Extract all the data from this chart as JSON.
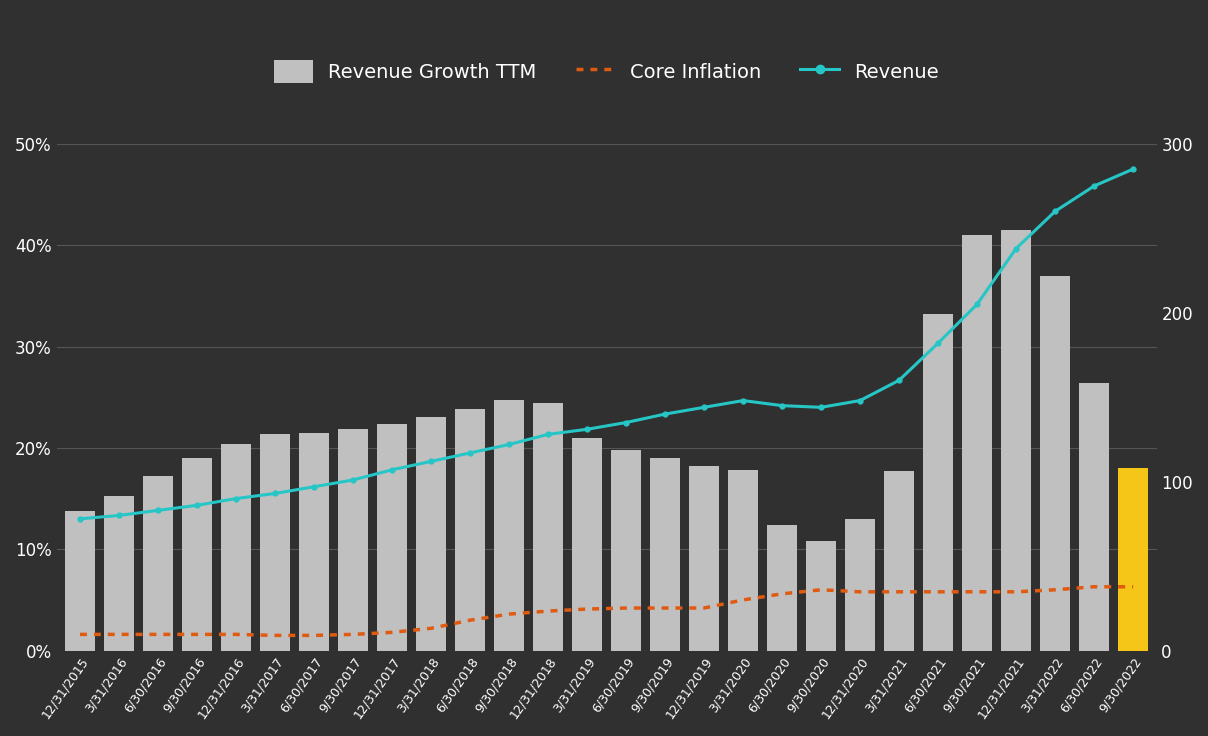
{
  "background_color": "#303030",
  "plot_bg_color": "#303030",
  "categories": [
    "12/31/2015",
    "3/31/2016",
    "6/30/2016",
    "9/30/2016",
    "12/31/2016",
    "3/31/2017",
    "6/30/2017",
    "9/30/2017",
    "12/31/2017",
    "3/31/2018",
    "6/30/2018",
    "9/30/2018",
    "12/31/2018",
    "3/31/2019",
    "6/30/2019",
    "9/30/2019",
    "12/31/2019",
    "3/31/2020",
    "6/30/2020",
    "9/30/2020",
    "12/31/2020",
    "3/31/2021",
    "6/30/2021",
    "9/30/2021",
    "12/31/2021",
    "3/31/2022",
    "6/30/2022",
    "9/30/2022"
  ],
  "revenue_growth": [
    0.138,
    0.153,
    0.172,
    0.19,
    0.204,
    0.214,
    0.215,
    0.219,
    0.224,
    0.23,
    0.238,
    0.247,
    0.244,
    0.21,
    0.198,
    0.19,
    0.182,
    0.178,
    0.124,
    0.108,
    0.13,
    0.177,
    0.332,
    0.41,
    0.415,
    0.37,
    0.264,
    0.18
  ],
  "bar_colors": [
    "#c0c0c0",
    "#c0c0c0",
    "#c0c0c0",
    "#c0c0c0",
    "#c0c0c0",
    "#c0c0c0",
    "#c0c0c0",
    "#c0c0c0",
    "#c0c0c0",
    "#c0c0c0",
    "#c0c0c0",
    "#c0c0c0",
    "#c0c0c0",
    "#c0c0c0",
    "#c0c0c0",
    "#c0c0c0",
    "#c0c0c0",
    "#c0c0c0",
    "#c0c0c0",
    "#c0c0c0",
    "#c0c0c0",
    "#c0c0c0",
    "#c0c0c0",
    "#c0c0c0",
    "#c0c0c0",
    "#c0c0c0",
    "#c0c0c0",
    "#f5c518"
  ],
  "core_inflation": [
    0.016,
    0.016,
    0.016,
    0.016,
    0.016,
    0.015,
    0.015,
    0.016,
    0.018,
    0.022,
    0.03,
    0.036,
    0.039,
    0.041,
    0.042,
    0.042,
    0.042,
    0.05,
    0.056,
    0.06,
    0.058,
    0.058,
    0.058,
    0.058,
    0.058,
    0.06,
    0.063,
    0.063
  ],
  "revenue": [
    78,
    80,
    83,
    86,
    90,
    93,
    97,
    101,
    107,
    112,
    117,
    122,
    128,
    131,
    135,
    140,
    144,
    148,
    145,
    144,
    148,
    160,
    182,
    205,
    238,
    260,
    275,
    285
  ],
  "revenue_line_color": "#26c6c6",
  "inflation_line_color": "#e05a10",
  "grid_color": "#555555",
  "text_color": "#ffffff",
  "ylim_left": [
    0.0,
    0.55
  ],
  "ylim_right": [
    0,
    330
  ],
  "yticks_left": [
    0.0,
    0.1,
    0.2,
    0.3,
    0.4,
    0.5
  ],
  "yticks_left_labels": [
    "0%",
    "10%",
    "20%",
    "30%",
    "40%",
    "50%"
  ],
  "yticks_right": [
    0,
    100,
    200,
    300
  ],
  "yticks_right_labels": [
    "0",
    "100",
    "200",
    "300"
  ],
  "legend_fontsize": 14,
  "tick_fontsize": 12,
  "xtick_fontsize": 9
}
